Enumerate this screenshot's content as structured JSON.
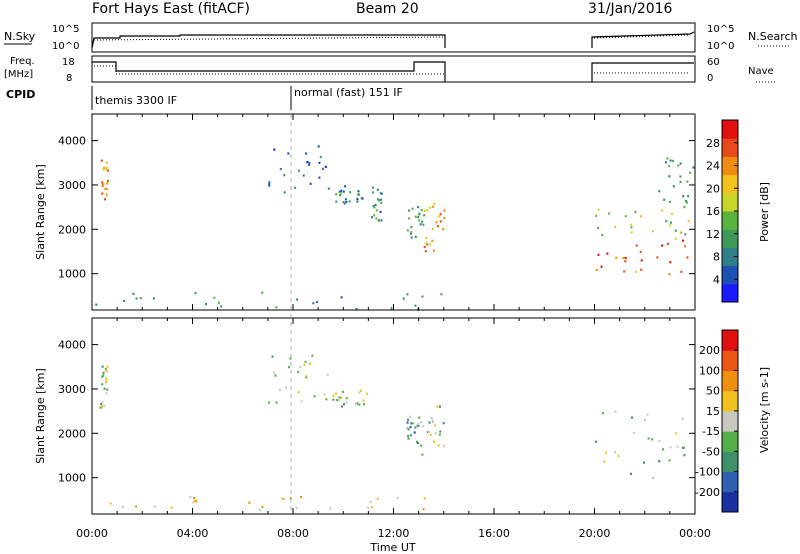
{
  "header": {
    "station": "Fort Hays East (fitACF)",
    "beam": "Beam 20",
    "date": "31/Jan/2016"
  },
  "panels": {
    "nsky_label": "N.Sky",
    "nsky_ticks": [
      "10^5",
      "10^0"
    ],
    "nsearch_label": "N.Search",
    "nsearch_ticks": [
      "10^5",
      "10^0"
    ],
    "freq_label": "Freq.",
    "freq_unit": "[MHz]",
    "freq_ticks": [
      "18",
      "8"
    ],
    "nave_label": "Nave",
    "nave_ticks": [
      "60",
      "0"
    ],
    "cpid_label": "CPID",
    "cpid_modes": [
      "themis 3300 IF",
      "normal (fast) 151 IF"
    ]
  },
  "chart_data": [
    {
      "type": "heatmap",
      "name": "power-panel",
      "ylabel": "Slant Range [km]",
      "xlabel": "Time UT",
      "x_ticks": [
        "00:00",
        "04:00",
        "08:00",
        "12:00",
        "16:00",
        "20:00",
        "00:00"
      ],
      "x_range_hours": [
        0,
        24
      ],
      "y_ticks": [
        1000,
        2000,
        3000,
        4000
      ],
      "y_range": [
        180,
        4600
      ],
      "colorbar": {
        "label": "Power [dB]",
        "ticks": [
          "28",
          "24",
          "20",
          "16",
          "12",
          "8",
          "4"
        ],
        "colors": [
          "#1a1aff",
          "#1e4fb4",
          "#2f7f8a",
          "#3f9a5a",
          "#5bb33f",
          "#c8d629",
          "#f3c21b",
          "#f08c12",
          "#e8491a",
          "#e01010"
        ]
      },
      "regions": [
        {
          "t": [
            0.3,
            0.6
          ],
          "r": [
            2600,
            3700
          ],
          "level": 0.75
        },
        {
          "t": [
            7.0,
            9.5
          ],
          "r": [
            2700,
            3900
          ],
          "level": 0.2
        },
        {
          "t": [
            9.5,
            11.0
          ],
          "r": [
            2600,
            3000
          ],
          "level": 0.25
        },
        {
          "t": [
            11.0,
            11.5
          ],
          "r": [
            2200,
            3000
          ],
          "level": 0.3
        },
        {
          "t": [
            12.5,
            13.2
          ],
          "r": [
            1800,
            2600
          ],
          "level": 0.4
        },
        {
          "t": [
            13.2,
            14.0
          ],
          "r": [
            1500,
            2700
          ],
          "level": 0.7
        },
        {
          "t": [
            20.0,
            23.8
          ],
          "r": [
            1000,
            1800
          ],
          "level": 0.85
        },
        {
          "t": [
            20.0,
            23.8
          ],
          "r": [
            1800,
            2500
          ],
          "level": 0.55
        },
        {
          "t": [
            22.5,
            23.9
          ],
          "r": [
            2500,
            3700
          ],
          "level": 0.35
        },
        {
          "t": [
            0.0,
            14.0
          ],
          "r": [
            200,
            600
          ],
          "level": 0.3
        }
      ]
    },
    {
      "type": "heatmap",
      "name": "velocity-panel",
      "ylabel": "Slant Range [km]",
      "xlabel": "Time UT",
      "x_ticks": [
        "00:00",
        "04:00",
        "08:00",
        "12:00",
        "16:00",
        "20:00",
        "00:00"
      ],
      "x_range_hours": [
        0,
        24
      ],
      "y_ticks": [
        1000,
        2000,
        3000,
        4000
      ],
      "y_range": [
        180,
        4600
      ],
      "colorbar": {
        "label": "Velocity [m s-1]",
        "ticks": [
          "200",
          "100",
          "50",
          "15",
          "-15",
          "-50",
          "-100",
          "-200"
        ],
        "colors": [
          "#1a2fa0",
          "#2f5fb0",
          "#3f8f6a",
          "#55b04a",
          "#c8c8c0",
          "#f0c020",
          "#f09010",
          "#e85515",
          "#e01010"
        ]
      },
      "regions": [
        {
          "t": [
            0.3,
            0.6
          ],
          "r": [
            2600,
            3700
          ],
          "level": 0.45
        },
        {
          "t": [
            7.0,
            9.5
          ],
          "r": [
            2700,
            3900
          ],
          "level": 0.5
        },
        {
          "t": [
            9.5,
            11.0
          ],
          "r": [
            2600,
            3000
          ],
          "level": 0.45
        },
        {
          "t": [
            12.5,
            13.0
          ],
          "r": [
            1800,
            2400
          ],
          "level": 0.35
        },
        {
          "t": [
            13.0,
            14.0
          ],
          "r": [
            1500,
            2700
          ],
          "level": 0.45
        },
        {
          "t": [
            20.0,
            23.8
          ],
          "r": [
            1000,
            2600
          ],
          "level": 0.45
        },
        {
          "t": [
            0.0,
            14.0
          ],
          "r": [
            200,
            600
          ],
          "level": 0.6
        }
      ]
    }
  ]
}
